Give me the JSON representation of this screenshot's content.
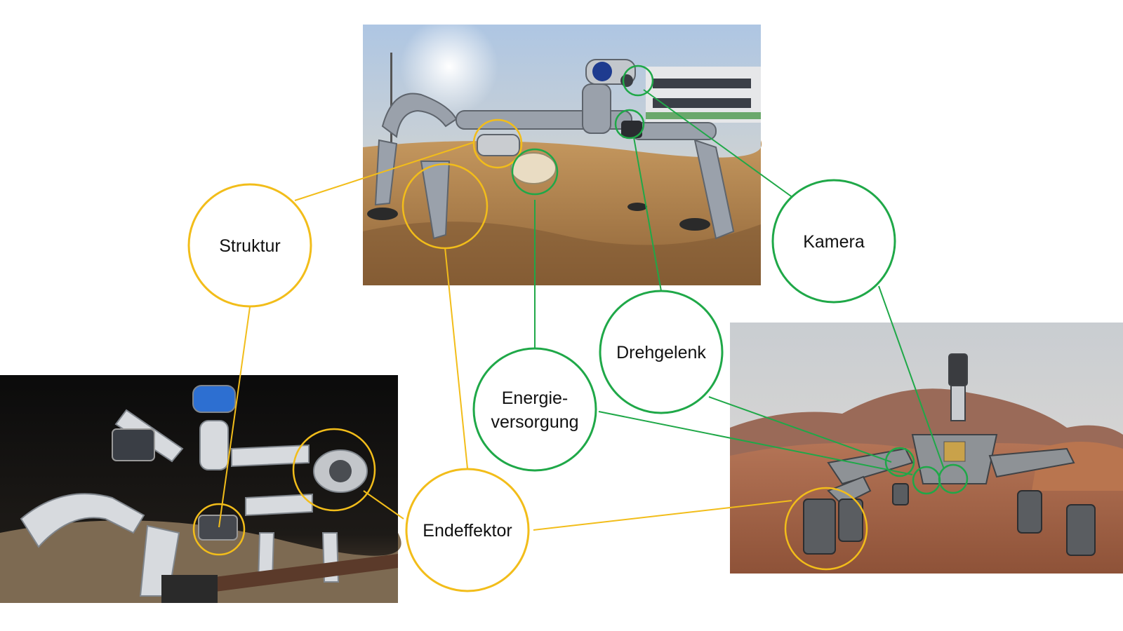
{
  "diagram": {
    "labels": {
      "struktur": "Struktur",
      "endeffektor": "Endeffektor",
      "energie_line1": "Energie-",
      "energie_line2": "versorgung",
      "drehgelenk": "Drehgelenk",
      "kamera": "Kamera"
    },
    "colors": {
      "yellow": "#f2bd1a",
      "green": "#1fa848",
      "photo_top_sky": "#b7cde6",
      "photo_sand": "#b88a58",
      "photo_dark": "#161514",
      "photo_mars_sky": "#d0d3d6",
      "photo_mars_ground": "#a9694a"
    }
  }
}
